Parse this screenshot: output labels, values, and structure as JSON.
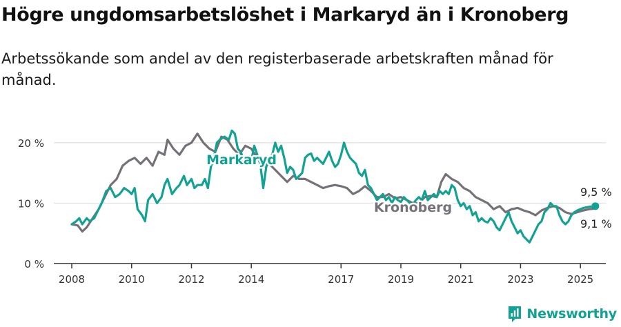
{
  "title": "Högre ungdomsarbetslöshet i Markaryd än i Kronoberg",
  "subtitle": "Arbetssökande som andel av den registerbaserade arbetskraften månad för månad.",
  "brand": "Newsworthy",
  "colors": {
    "markaryd": "#12a293",
    "kronoberg": "#767078",
    "grid": "#dddddd",
    "axis": "#333333"
  },
  "chart_data": {
    "type": "line",
    "x_range": [
      2007.4,
      2025.85
    ],
    "ylim": [
      0,
      22.5
    ],
    "yticks": [
      0,
      10,
      20
    ],
    "ytick_labels": [
      "0 %",
      "10 %",
      "20 %"
    ],
    "xticks": [
      2008,
      2010,
      2012,
      2014,
      2017,
      2019,
      2021,
      2023,
      2025
    ],
    "xtick_labels": [
      "2008",
      "2010",
      "2012",
      "2014",
      "2017",
      "2019",
      "2021",
      "2023",
      "2025"
    ],
    "series": [
      {
        "name": "Kronoberg",
        "color": "#767078",
        "points": [
          [
            2008.0,
            6.5
          ],
          [
            2008.2,
            6.3
          ],
          [
            2008.35,
            5.3
          ],
          [
            2008.5,
            6.0
          ],
          [
            2008.7,
            7.5
          ],
          [
            2008.9,
            9.0
          ],
          [
            2009.1,
            11.0
          ],
          [
            2009.3,
            13.0
          ],
          [
            2009.5,
            14.0
          ],
          [
            2009.7,
            16.2
          ],
          [
            2009.9,
            17.0
          ],
          [
            2010.1,
            17.5
          ],
          [
            2010.3,
            16.5
          ],
          [
            2010.5,
            17.5
          ],
          [
            2010.7,
            16.2
          ],
          [
            2010.9,
            18.5
          ],
          [
            2011.1,
            18.0
          ],
          [
            2011.2,
            20.5
          ],
          [
            2011.4,
            19.0
          ],
          [
            2011.6,
            18.0
          ],
          [
            2011.8,
            19.5
          ],
          [
            2012.0,
            20.0
          ],
          [
            2012.2,
            21.5
          ],
          [
            2012.4,
            20.0
          ],
          [
            2012.6,
            19.0
          ],
          [
            2012.8,
            18.5
          ],
          [
            2013.0,
            21.0
          ],
          [
            2013.2,
            20.5
          ],
          [
            2013.4,
            19.0
          ],
          [
            2013.6,
            18.0
          ],
          [
            2013.8,
            19.5
          ],
          [
            2014.0,
            19.0
          ],
          [
            2014.2,
            17.5
          ],
          [
            2014.4,
            16.0
          ],
          [
            2014.6,
            16.5
          ],
          [
            2014.8,
            15.5
          ],
          [
            2015.0,
            14.5
          ],
          [
            2015.2,
            13.5
          ],
          [
            2015.4,
            14.5
          ],
          [
            2015.6,
            14.0
          ],
          [
            2015.8,
            14.0
          ],
          [
            2016.0,
            13.5
          ],
          [
            2016.2,
            13.0
          ],
          [
            2016.4,
            12.5
          ],
          [
            2016.6,
            12.8
          ],
          [
            2016.8,
            13.0
          ],
          [
            2017.0,
            12.8
          ],
          [
            2017.2,
            12.5
          ],
          [
            2017.4,
            11.5
          ],
          [
            2017.6,
            12.0
          ],
          [
            2017.8,
            12.8
          ],
          [
            2018.0,
            12.0
          ],
          [
            2018.2,
            11.0
          ],
          [
            2018.4,
            11.0
          ],
          [
            2018.6,
            11.5
          ],
          [
            2018.8,
            10.8
          ],
          [
            2019.0,
            11.0
          ],
          [
            2019.2,
            10.5
          ],
          [
            2019.4,
            10.0
          ],
          [
            2019.6,
            10.0
          ],
          [
            2019.8,
            11.0
          ],
          [
            2020.0,
            11.2
          ],
          [
            2020.2,
            11.0
          ],
          [
            2020.35,
            13.5
          ],
          [
            2020.5,
            14.8
          ],
          [
            2020.7,
            14.0
          ],
          [
            2020.9,
            13.5
          ],
          [
            2021.1,
            12.5
          ],
          [
            2021.3,
            12.0
          ],
          [
            2021.5,
            11.0
          ],
          [
            2021.7,
            10.5
          ],
          [
            2021.9,
            10.0
          ],
          [
            2022.1,
            9.0
          ],
          [
            2022.3,
            9.5
          ],
          [
            2022.5,
            8.5
          ],
          [
            2022.7,
            9.0
          ],
          [
            2022.9,
            9.2
          ],
          [
            2023.1,
            8.8
          ],
          [
            2023.3,
            8.5
          ],
          [
            2023.5,
            8.0
          ],
          [
            2023.7,
            8.8
          ],
          [
            2023.9,
            9.2
          ],
          [
            2024.1,
            9.5
          ],
          [
            2024.3,
            9.2
          ],
          [
            2024.5,
            8.5
          ],
          [
            2024.7,
            8.2
          ],
          [
            2024.9,
            8.5
          ],
          [
            2025.1,
            8.8
          ],
          [
            2025.3,
            9.0
          ],
          [
            2025.5,
            9.1
          ]
        ]
      },
      {
        "name": "Markaryd",
        "color": "#12a293",
        "points": [
          [
            2008.0,
            6.5
          ],
          [
            2008.15,
            7.0
          ],
          [
            2008.25,
            7.5
          ],
          [
            2008.35,
            6.5
          ],
          [
            2008.5,
            7.5
          ],
          [
            2008.6,
            7.0
          ],
          [
            2008.75,
            7.5
          ],
          [
            2008.9,
            9.0
          ],
          [
            2009.0,
            10.0
          ],
          [
            2009.15,
            12.0
          ],
          [
            2009.3,
            12.5
          ],
          [
            2009.45,
            11.0
          ],
          [
            2009.6,
            11.5
          ],
          [
            2009.75,
            12.5
          ],
          [
            2009.9,
            12.0
          ],
          [
            2010.0,
            11.5
          ],
          [
            2010.1,
            12.5
          ],
          [
            2010.2,
            9.0
          ],
          [
            2010.35,
            8.0
          ],
          [
            2010.45,
            7.0
          ],
          [
            2010.55,
            10.5
          ],
          [
            2010.7,
            11.5
          ],
          [
            2010.85,
            10.0
          ],
          [
            2011.0,
            11.0
          ],
          [
            2011.1,
            13.0
          ],
          [
            2011.2,
            14.0
          ],
          [
            2011.35,
            11.5
          ],
          [
            2011.5,
            12.5
          ],
          [
            2011.6,
            13.0
          ],
          [
            2011.75,
            14.5
          ],
          [
            2011.85,
            13.0
          ],
          [
            2012.0,
            14.0
          ],
          [
            2012.1,
            12.5
          ],
          [
            2012.2,
            13.0
          ],
          [
            2012.35,
            13.0
          ],
          [
            2012.45,
            14.0
          ],
          [
            2012.55,
            12.5
          ],
          [
            2012.65,
            16.0
          ],
          [
            2012.75,
            17.5
          ],
          [
            2012.85,
            20.0
          ],
          [
            2012.95,
            20.5
          ],
          [
            2013.1,
            21.0
          ],
          [
            2013.25,
            20.5
          ],
          [
            2013.35,
            22.0
          ],
          [
            2013.45,
            21.5
          ],
          [
            2013.55,
            19.0
          ],
          [
            2013.65,
            18.5
          ],
          [
            2013.75,
            17.0
          ],
          [
            2013.85,
            16.5
          ],
          [
            2014.0,
            17.0
          ],
          [
            2014.1,
            19.5
          ],
          [
            2014.2,
            18.0
          ],
          [
            2014.3,
            16.5
          ],
          [
            2014.4,
            12.5
          ],
          [
            2014.5,
            16.0
          ],
          [
            2014.6,
            17.5
          ],
          [
            2014.7,
            18.0
          ],
          [
            2014.8,
            20.0
          ],
          [
            2014.9,
            18.5
          ],
          [
            2015.0,
            19.5
          ],
          [
            2015.1,
            17.5
          ],
          [
            2015.2,
            15.0
          ],
          [
            2015.3,
            16.0
          ],
          [
            2015.4,
            15.5
          ],
          [
            2015.5,
            14.0
          ],
          [
            2015.6,
            14.5
          ],
          [
            2015.7,
            15.0
          ],
          [
            2015.8,
            17.5
          ],
          [
            2015.9,
            18.0
          ],
          [
            2016.0,
            18.2
          ],
          [
            2016.1,
            17.0
          ],
          [
            2016.2,
            17.5
          ],
          [
            2016.3,
            17.0
          ],
          [
            2016.4,
            16.5
          ],
          [
            2016.5,
            17.5
          ],
          [
            2016.6,
            18.5
          ],
          [
            2016.7,
            17.0
          ],
          [
            2016.8,
            16.0
          ],
          [
            2016.9,
            16.5
          ],
          [
            2017.0,
            18.0
          ],
          [
            2017.1,
            20.0
          ],
          [
            2017.2,
            18.5
          ],
          [
            2017.3,
            17.5
          ],
          [
            2017.4,
            17.0
          ],
          [
            2017.5,
            16.5
          ],
          [
            2017.6,
            15.0
          ],
          [
            2017.7,
            14.5
          ],
          [
            2017.8,
            15.5
          ],
          [
            2017.9,
            13.0
          ],
          [
            2018.0,
            12.5
          ],
          [
            2018.1,
            11.5
          ],
          [
            2018.2,
            10.5
          ],
          [
            2018.3,
            11.0
          ],
          [
            2018.4,
            11.5
          ],
          [
            2018.5,
            10.5
          ],
          [
            2018.6,
            11.0
          ],
          [
            2018.7,
            10.0
          ],
          [
            2018.8,
            11.0
          ],
          [
            2018.9,
            10.5
          ],
          [
            2019.0,
            10.2
          ],
          [
            2019.1,
            11.0
          ],
          [
            2019.2,
            10.5
          ],
          [
            2019.3,
            10.0
          ],
          [
            2019.4,
            9.8
          ],
          [
            2019.5,
            10.5
          ],
          [
            2019.6,
            11.0
          ],
          [
            2019.7,
            10.5
          ],
          [
            2019.8,
            12.0
          ],
          [
            2019.9,
            10.5
          ],
          [
            2020.0,
            11.0
          ],
          [
            2020.1,
            11.5
          ],
          [
            2020.2,
            11.0
          ],
          [
            2020.3,
            12.0
          ],
          [
            2020.4,
            11.5
          ],
          [
            2020.5,
            12.0
          ],
          [
            2020.6,
            11.5
          ],
          [
            2020.7,
            13.0
          ],
          [
            2020.8,
            12.5
          ],
          [
            2020.9,
            10.5
          ],
          [
            2021.0,
            9.5
          ],
          [
            2021.1,
            10.0
          ],
          [
            2021.2,
            9.0
          ],
          [
            2021.3,
            9.5
          ],
          [
            2021.4,
            8.0
          ],
          [
            2021.5,
            8.5
          ],
          [
            2021.6,
            7.0
          ],
          [
            2021.7,
            7.5
          ],
          [
            2021.8,
            7.0
          ],
          [
            2021.9,
            6.8
          ],
          [
            2022.0,
            7.5
          ],
          [
            2022.1,
            7.0
          ],
          [
            2022.2,
            6.0
          ],
          [
            2022.3,
            5.5
          ],
          [
            2022.4,
            6.5
          ],
          [
            2022.5,
            7.5
          ],
          [
            2022.6,
            8.5
          ],
          [
            2022.7,
            7.0
          ],
          [
            2022.8,
            6.0
          ],
          [
            2022.9,
            5.0
          ],
          [
            2023.0,
            5.5
          ],
          [
            2023.1,
            4.5
          ],
          [
            2023.2,
            4.0
          ],
          [
            2023.3,
            3.5
          ],
          [
            2023.4,
            4.5
          ],
          [
            2023.5,
            5.5
          ],
          [
            2023.6,
            6.5
          ],
          [
            2023.7,
            7.0
          ],
          [
            2023.8,
            8.5
          ],
          [
            2023.9,
            9.0
          ],
          [
            2024.0,
            10.0
          ],
          [
            2024.1,
            9.5
          ],
          [
            2024.2,
            9.5
          ],
          [
            2024.3,
            8.0
          ],
          [
            2024.4,
            7.0
          ],
          [
            2024.5,
            6.5
          ],
          [
            2024.6,
            7.0
          ],
          [
            2024.7,
            8.0
          ],
          [
            2024.8,
            8.5
          ],
          [
            2024.9,
            8.8
          ],
          [
            2025.0,
            9.0
          ],
          [
            2025.1,
            9.2
          ],
          [
            2025.2,
            9.3
          ],
          [
            2025.3,
            9.4
          ],
          [
            2025.5,
            9.5
          ]
        ]
      }
    ],
    "series_labels": [
      "Markaryd",
      "Kronoberg"
    ],
    "end_labels": [
      "9,5 %",
      "9,1 %"
    ]
  }
}
